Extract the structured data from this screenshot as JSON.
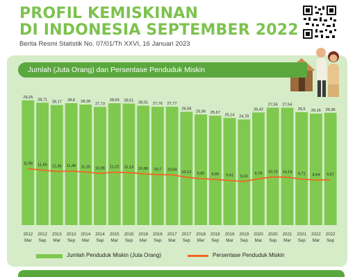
{
  "header": {
    "title_line1": "PROFIL KEMISKINAN",
    "title_line2": "DI INDONESIA SEPTEMBER  2022",
    "subtitle": "Berita Resmi Statistik No. 07/01/Th XXVI, 16 Januari 2023"
  },
  "panel": {
    "title": "Jumlah (Juta Orang) dan Persentase Penduduk Miskin"
  },
  "legend": {
    "bar_label": "Jumlah Penduduk Miskin (Juta Orang)",
    "line_label": "Persentase Penduduk Miskin"
  },
  "colors": {
    "title": "#7cc24e",
    "bar": "#7fc94f",
    "line": "#f26522",
    "panel": "#d6ecc8",
    "header_bar": "#5aa83d"
  },
  "chart_data": {
    "type": "bar",
    "categories": [
      [
        "2012",
        "Mar"
      ],
      [
        "2012",
        "Sep"
      ],
      [
        "2013",
        "Mar"
      ],
      [
        "2013",
        "Sep"
      ],
      [
        "2014",
        "Mar"
      ],
      [
        "2014",
        "Sep"
      ],
      [
        "2015",
        "Mar"
      ],
      [
        "2015",
        "Sep"
      ],
      [
        "2016",
        "Mar"
      ],
      [
        "2016",
        "Sep"
      ],
      [
        "2017",
        "Mar"
      ],
      [
        "2017",
        "Sep"
      ],
      [
        "2018",
        "Mar"
      ],
      [
        "2018",
        "Sep"
      ],
      [
        "2019",
        "Mar"
      ],
      [
        "2019",
        "Sep"
      ],
      [
        "2020",
        "Mar"
      ],
      [
        "2020",
        "Sep"
      ],
      [
        "2021",
        "Mar"
      ],
      [
        "2021",
        "Sep"
      ],
      [
        "2022",
        "Mar"
      ],
      [
        "2022",
        "Sep"
      ]
    ],
    "series": [
      {
        "name": "Jumlah Penduduk Miskin (Juta Orang)",
        "type": "bar",
        "values": [
          29.25,
          28.71,
          28.17,
          28.6,
          28.28,
          27.73,
          28.59,
          28.51,
          28.01,
          27.76,
          27.77,
          26.58,
          25.95,
          25.67,
          25.14,
          24.78,
          26.42,
          27.55,
          27.54,
          26.5,
          26.16,
          26.36
        ],
        "labels": [
          "29,25",
          "28,71",
          "28,17",
          "28,6",
          "28,28",
          "27,73",
          "28,59",
          "28,51",
          "28,01",
          "27,76",
          "27,77",
          "26,58",
          "25,95",
          "25,67",
          "25,14",
          "24,78",
          "26,42",
          "27,55",
          "27,54",
          "26,5",
          "26,16",
          "26,36"
        ]
      },
      {
        "name": "Persentase Penduduk Miskin",
        "type": "line",
        "values": [
          11.96,
          11.66,
          11.36,
          11.46,
          11.25,
          10.96,
          11.22,
          11.13,
          10.86,
          10.7,
          10.64,
          10.12,
          9.82,
          9.66,
          9.41,
          9.22,
          9.78,
          10.19,
          10.14,
          9.71,
          9.54,
          9.57
        ],
        "labels": [
          "11,96",
          "11,66",
          "11,36",
          "11,46",
          "11,25",
          "10,96",
          "11,22",
          "11,13",
          "10,86",
          "10,7",
          "10,64",
          "10,12",
          "9,82",
          "9,66",
          "9,41",
          "9,22",
          "9,78",
          "10,19",
          "10,14",
          "9,71",
          "9,54",
          "9,57"
        ]
      }
    ],
    "grid": false,
    "legend_position": "bottom"
  }
}
